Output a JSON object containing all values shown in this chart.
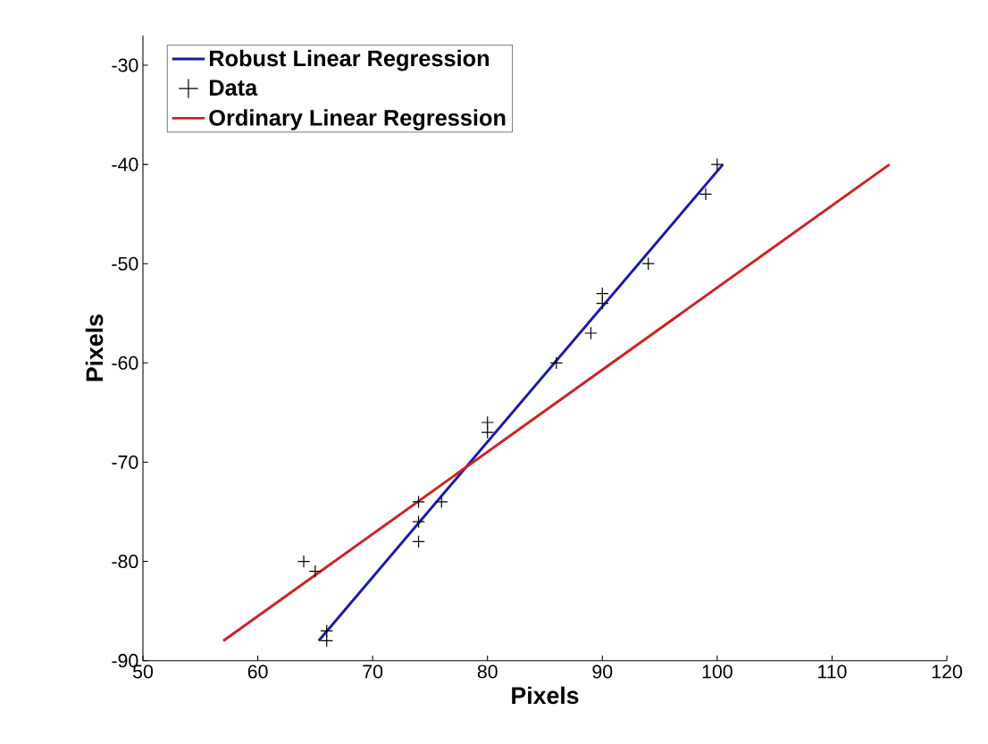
{
  "chart_data": {
    "type": "scatter",
    "xlabel": "Pixels",
    "ylabel": "Pixels",
    "xlim": [
      50,
      120
    ],
    "ylim": [
      -90,
      -27
    ],
    "xticks": [
      50,
      60,
      70,
      80,
      90,
      100,
      110,
      120
    ],
    "yticks": [
      -90,
      -80,
      -70,
      -60,
      -50,
      -40,
      -30
    ],
    "grid": false,
    "legend": "top left",
    "series": [
      {
        "name": "Robust Linear Regression",
        "type": "line",
        "marker": "none",
        "color": "#1a1aa6",
        "x": [
          65.3,
          100.5
        ],
        "values": [
          -88,
          -40
        ]
      },
      {
        "name": "Data",
        "marker": "cross",
        "color": "#000000",
        "x": [
          100,
          99,
          94,
          90,
          90,
          89,
          86,
          80,
          80,
          76,
          74,
          74,
          74,
          64,
          65,
          66,
          66
        ],
        "values": [
          -40,
          -43,
          -50,
          -53,
          -54,
          -57,
          -60,
          -66,
          -67,
          -74,
          -74,
          -76,
          -78,
          -80,
          -81,
          -87,
          -88
        ]
      },
      {
        "name": "Ordinary Linear Regression",
        "type": "line",
        "marker": "none",
        "color": "#cc2222",
        "x": [
          57,
          115
        ],
        "values": [
          -88,
          -40
        ]
      }
    ]
  }
}
